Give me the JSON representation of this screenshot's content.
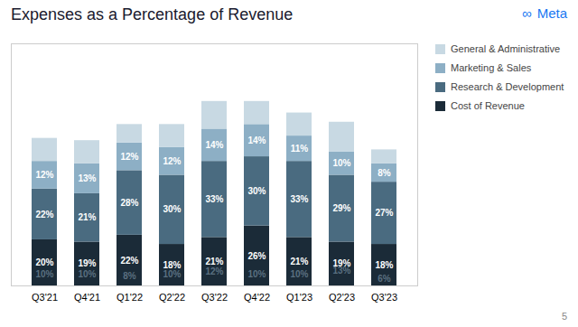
{
  "chart_data": {
    "type": "bar",
    "title": "Expenses as a Percentage of Revenue",
    "categories": [
      "Q3'21",
      "Q4'21",
      "Q1'22",
      "Q2'22",
      "Q3'22",
      "Q4'22",
      "Q1'23",
      "Q2'23",
      "Q3'23"
    ],
    "series": [
      {
        "name": "Cost of Revenue",
        "color": "#1b2b38",
        "values": [
          20,
          19,
          22,
          18,
          21,
          26,
          21,
          19,
          18
        ],
        "value_labels": [
          "20%",
          "19%",
          "22%",
          "18%",
          "21%",
          "26%",
          "21%",
          "19%",
          "18%"
        ]
      },
      {
        "name": "Research & Development",
        "color": "#4a6b80",
        "values": [
          22,
          21,
          28,
          30,
          33,
          30,
          33,
          29,
          27
        ],
        "value_labels": [
          "22%",
          "21%",
          "28%",
          "30%",
          "33%",
          "30%",
          "33%",
          "29%",
          "27%"
        ]
      },
      {
        "name": "Marketing & Sales",
        "color": "#8dafc5",
        "values": [
          12,
          13,
          12,
          12,
          14,
          14,
          11,
          10,
          8
        ],
        "value_labels": [
          "12%",
          "13%",
          "12%",
          "12%",
          "14%",
          "14%",
          "11%",
          "10%",
          "8%"
        ]
      },
      {
        "name": "General & Administrative",
        "color": "#c8d9e3",
        "values": [
          10,
          10,
          8,
          10,
          12,
          10,
          10,
          13,
          6
        ],
        "value_labels": [
          "10%",
          "10%",
          "8%",
          "10%",
          "12%",
          "10%",
          "10%",
          "13%",
          "6%"
        ]
      }
    ],
    "stacked": true,
    "ylim": [
      0,
      105
    ],
    "tick_labels": "x",
    "data_labels": true,
    "legend": "right",
    "annotations": [
      {
        "text": "∞",
        "color": "#1877F2"
      },
      {
        "text": "Meta",
        "color": "#1877F2"
      },
      {
        "text": "5"
      }
    ]
  }
}
